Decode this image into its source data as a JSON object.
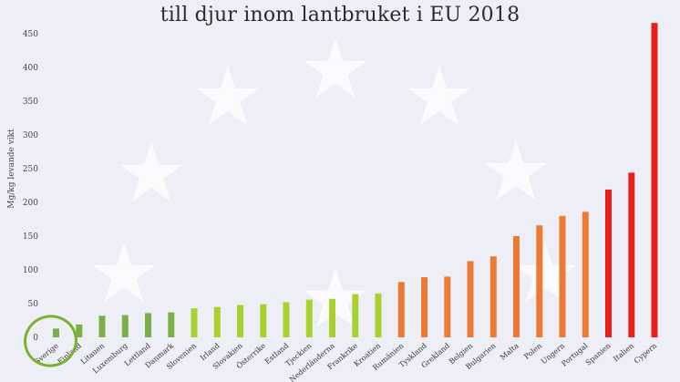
{
  "title": "till djur inom lantbruket i EU 2018",
  "chart_data": {
    "type": "bar",
    "ylabel": "Mg/kg levande vikt",
    "ylim": [
      0,
      500
    ],
    "yticks": [
      0,
      50,
      100,
      150,
      200,
      250,
      300,
      350,
      400,
      450
    ],
    "grid": false,
    "legend": "none",
    "categories": [
      "Sverige",
      "Finland",
      "Litauen",
      "Luxemburg",
      "Lettland",
      "Danmark",
      "Slovenien",
      "Irland",
      "Slovakien",
      "Österrike",
      "Estland",
      "Tjeckien",
      "Nederländerna",
      "Frankrike",
      "Kroatien",
      "Rumänien",
      "Tyskland",
      "Grekland",
      "Belgien",
      "Bulgarien",
      "Malta",
      "Polen",
      "Ungern",
      "Portugal",
      "Spanien",
      "Italien",
      "Cypern"
    ],
    "values": [
      13,
      19,
      32,
      33,
      36,
      37,
      43,
      45,
      48,
      49,
      52,
      56,
      57,
      64,
      65,
      82,
      89,
      90,
      113,
      120,
      150,
      166,
      180,
      186,
      219,
      244,
      466
    ],
    "colors": [
      "#79b04a",
      "#79b04a",
      "#79b04a",
      "#79b04a",
      "#79b04a",
      "#79b04a",
      "#a8d12f",
      "#a8d12f",
      "#a8d12f",
      "#a8d12f",
      "#a8d12f",
      "#a8d12f",
      "#a8d12f",
      "#a8d12f",
      "#a8d12f",
      "#ec7a35",
      "#ec7a35",
      "#ec7a35",
      "#ec7a35",
      "#ec7a35",
      "#ec7a35",
      "#ec7a35",
      "#ec7a35",
      "#ec7a35",
      "#e8201c",
      "#e8201c",
      "#e8201c"
    ],
    "highlight_circle_color": "#79b22e",
    "highlighted_category": "Sverige"
  }
}
